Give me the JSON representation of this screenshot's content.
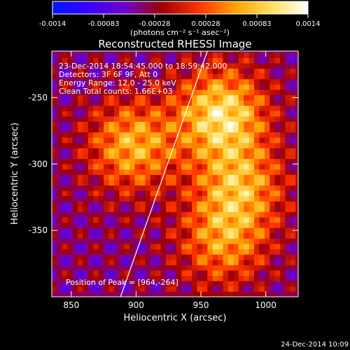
{
  "colorbar": {
    "tick_labels": [
      "-0.0014",
      "-0.00083",
      "-0.00028",
      "0.00028",
      "0.00083",
      "0.0014"
    ],
    "unit_label": "(photons cm⁻² s⁻¹ asec⁻²)",
    "range": [
      -0.0014,
      0.0014
    ],
    "colors": [
      "#0018ff",
      "#3a00ff",
      "#7000c8",
      "#9e0000",
      "#ff3200",
      "#ffa000",
      "#ffe060",
      "#ffffff"
    ]
  },
  "chart_data": {
    "type": "heatmap",
    "title": "Reconstructed RHESSI Image",
    "xlabel": "Heliocentric X (arcsec)",
    "ylabel": "Heliocentric Y (arcsec)",
    "xlim": [
      835,
      1025
    ],
    "ylim": [
      -400,
      -215
    ],
    "x_ticks": [
      "850",
      "900",
      "950",
      "1000"
    ],
    "y_ticks": [
      "-250",
      "-300",
      "-350"
    ],
    "x_tick_values": [
      850,
      900,
      950,
      1000
    ],
    "y_tick_values": [
      -250,
      -300,
      -350
    ],
    "annotations": [
      "23-Dec-2014 18:54:45.000 to 18:59:42.000",
      "Detectors: 3F 6F 9F, Att 0",
      "Energy Range: 12.0 - 25.0 keV",
      "Clean      Total counts: 1.66E+03"
    ],
    "peak_label": "Position of Peak = [964,-264]",
    "peak_position": [
      964,
      -264
    ],
    "sources": [
      {
        "x": 964,
        "y": -264,
        "peak": 0.0014
      },
      {
        "x": 895,
        "y": -288,
        "peak": 0.0011
      },
      {
        "x": 978,
        "y": -318,
        "peak": 0.001
      },
      {
        "x": 965,
        "y": -360,
        "peak": 0.0009
      }
    ],
    "limb_line": [
      [
        888,
        -400
      ],
      [
        955,
        -215
      ]
    ]
  },
  "footer_date": "24-Dec-2014 10:09"
}
